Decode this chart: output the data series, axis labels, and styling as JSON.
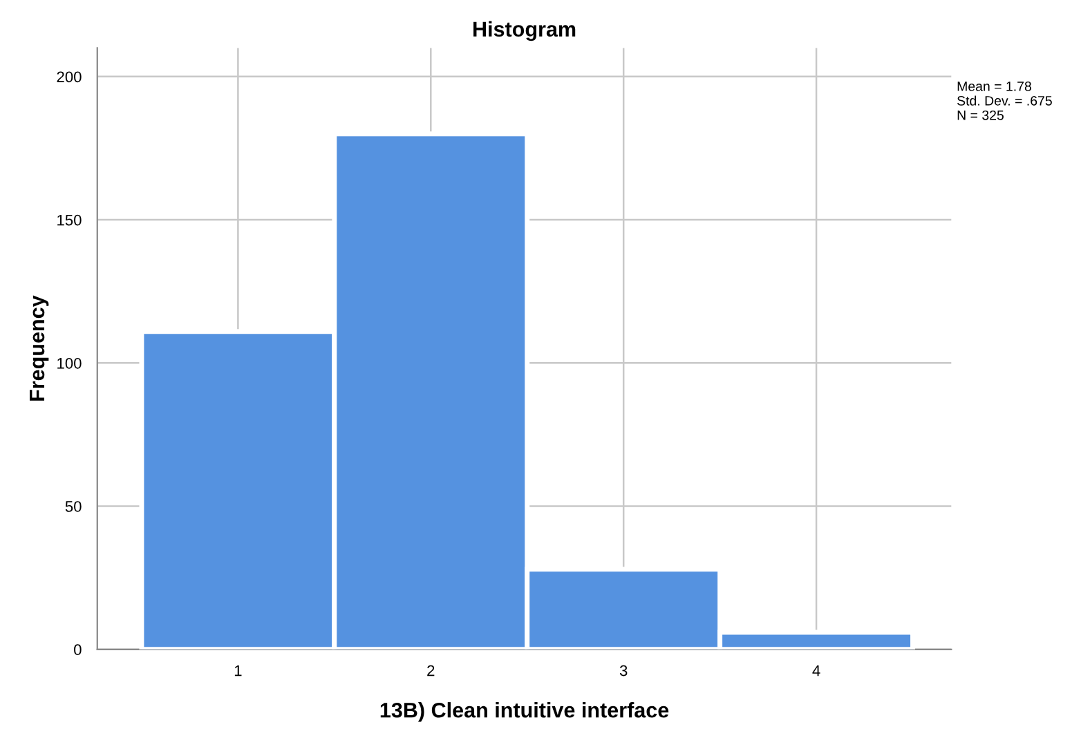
{
  "chart_data": {
    "type": "histogram",
    "title": "Histogram",
    "xlabel": "13B) Clean intuitive interface",
    "ylabel": "Frequency",
    "bins": [
      0.5,
      1.5,
      2.5,
      3.5,
      4.5
    ],
    "values": [
      111,
      180,
      28,
      6
    ],
    "color": "#5592e0",
    "xlim": [
      0.27,
      4.7
    ],
    "xticks": [
      1,
      2,
      3,
      4
    ],
    "ylim": [
      0,
      210
    ],
    "yticks": [
      0,
      50,
      100,
      150,
      200
    ],
    "grid": true,
    "annotations": [
      "Mean = 1.78\nStd. Dev. = .675\nN = 325"
    ]
  }
}
